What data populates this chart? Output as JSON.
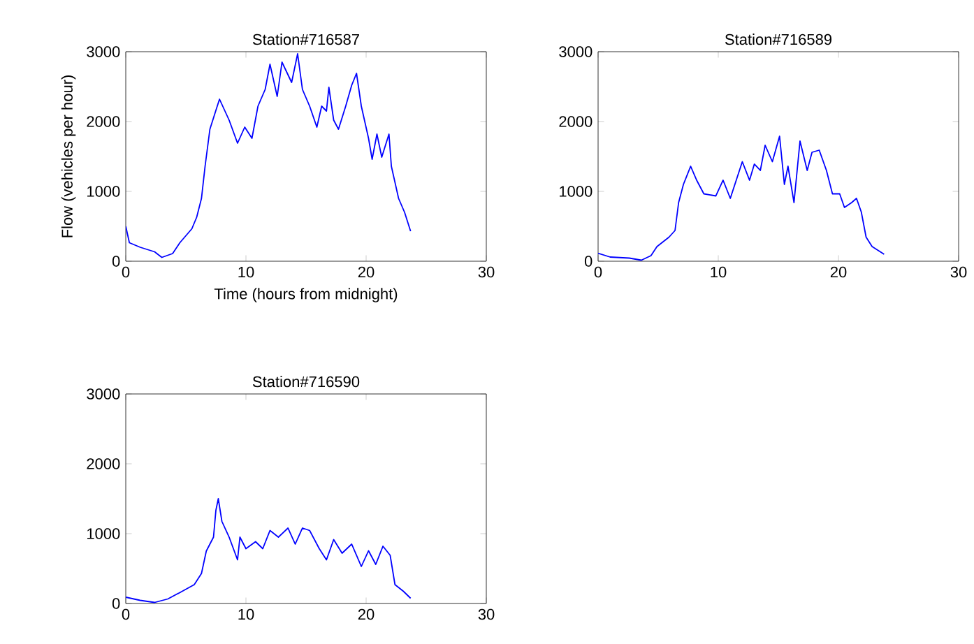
{
  "chart_data": [
    {
      "type": "line",
      "title": "Station#716587",
      "xlabel": "Time (hours from midnight)",
      "ylabel": "Flow (vehicles per hour)",
      "xlim": [
        0,
        30
      ],
      "ylim": [
        0,
        3000
      ],
      "xticks": [
        0,
        10,
        20,
        30
      ],
      "yticks": [
        0,
        1000,
        2000,
        3000
      ],
      "series": [
        {
          "color": "#0000ff",
          "x": [
            0,
            0.3,
            1.2,
            2.4,
            3.0,
            3.9,
            4.5,
            5.5,
            5.9,
            6.3,
            6.6,
            7.0,
            7.5,
            7.8,
            8.6,
            9.3,
            9.9,
            10.5,
            11.0,
            11.6,
            12.0,
            12.6,
            13.0,
            13.8,
            14.3,
            14.7,
            15.3,
            15.9,
            16.3,
            16.7,
            16.9,
            17.3,
            17.7,
            18.3,
            18.8,
            19.2,
            19.6,
            20.2,
            20.5,
            20.9,
            21.3,
            21.9,
            22.1,
            22.7,
            23.2,
            23.7
          ],
          "values": [
            500,
            265,
            200,
            135,
            55,
            110,
            265,
            465,
            630,
            900,
            1360,
            1890,
            2160,
            2320,
            2020,
            1690,
            1920,
            1760,
            2220,
            2460,
            2820,
            2360,
            2850,
            2560,
            2970,
            2460,
            2220,
            1920,
            2220,
            2150,
            2490,
            2020,
            1890,
            2220,
            2520,
            2690,
            2220,
            1760,
            1460,
            1820,
            1490,
            1820,
            1360,
            900,
            700,
            430
          ]
        }
      ]
    },
    {
      "type": "line",
      "title": "Station#716589",
      "xlim": [
        0,
        30
      ],
      "ylim": [
        0,
        3000
      ],
      "xticks": [
        0,
        10,
        20,
        30
      ],
      "yticks": [
        0,
        1000,
        2000,
        3000
      ],
      "series": [
        {
          "color": "#0000ff",
          "x": [
            0,
            1.0,
            2.6,
            3.6,
            4.4,
            4.9,
            5.9,
            6.4,
            6.7,
            7.1,
            7.7,
            8.2,
            8.8,
            9.8,
            10.4,
            11.0,
            12.0,
            12.6,
            13.0,
            13.5,
            13.9,
            14.5,
            15.1,
            15.5,
            15.8,
            16.3,
            16.8,
            17.4,
            17.8,
            18.4,
            19.0,
            19.5,
            20.1,
            20.5,
            21.1,
            21.5,
            21.9,
            22.3,
            22.8,
            23.8
          ],
          "values": [
            115,
            60,
            45,
            15,
            80,
            210,
            345,
            440,
            840,
            1100,
            1360,
            1160,
            965,
            935,
            1160,
            900,
            1425,
            1160,
            1390,
            1300,
            1660,
            1425,
            1790,
            1100,
            1360,
            840,
            1720,
            1300,
            1560,
            1590,
            1300,
            965,
            965,
            770,
            840,
            900,
            705,
            345,
            210,
            100
          ]
        }
      ]
    },
    {
      "type": "line",
      "title": "Station#716590",
      "xlim": [
        0,
        30
      ],
      "ylim": [
        0,
        3000
      ],
      "xticks": [
        0,
        10,
        20,
        30
      ],
      "yticks": [
        0,
        1000,
        2000,
        3000
      ],
      "series": [
        {
          "color": "#0000ff",
          "x": [
            0,
            1.2,
            2.4,
            3.5,
            4.7,
            5.7,
            6.3,
            6.7,
            7.3,
            7.5,
            7.7,
            8.0,
            8.6,
            9.3,
            9.5,
            10.0,
            10.8,
            11.4,
            12.0,
            12.7,
            13.5,
            14.1,
            14.7,
            15.3,
            16.1,
            16.7,
            17.3,
            18.0,
            18.8,
            19.6,
            20.2,
            20.8,
            21.4,
            22.0,
            22.4,
            23.1,
            23.7
          ],
          "values": [
            90,
            45,
            15,
            65,
            175,
            270,
            430,
            750,
            950,
            1335,
            1500,
            1175,
            950,
            625,
            950,
            785,
            885,
            785,
            1045,
            950,
            1080,
            850,
            1080,
            1045,
            785,
            625,
            915,
            720,
            850,
            530,
            755,
            560,
            820,
            690,
            270,
            175,
            75
          ]
        }
      ]
    }
  ]
}
